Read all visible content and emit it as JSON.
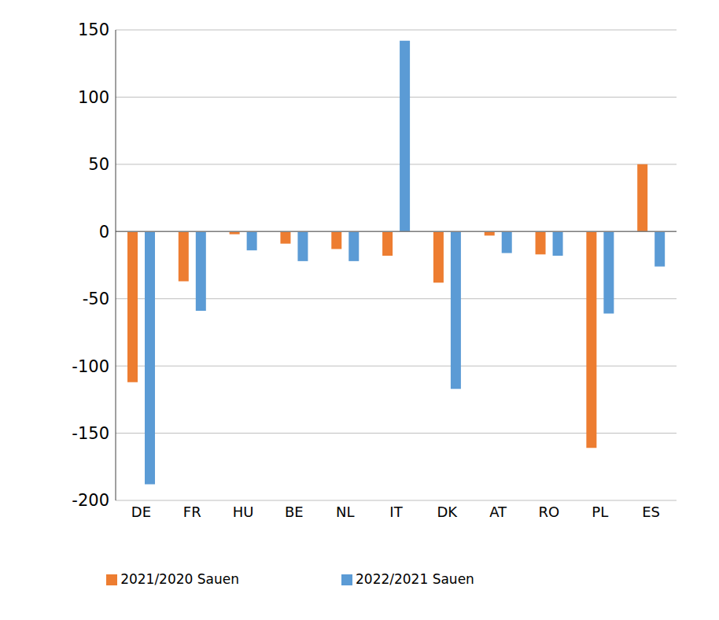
{
  "chart_data": {
    "type": "bar",
    "categories": [
      "DE",
      "FR",
      "HU",
      "BE",
      "NL",
      "IT",
      "DK",
      "AT",
      "RO",
      "PL",
      "ES"
    ],
    "series": [
      {
        "name": "2021/2020 Sauen",
        "color": "#ed7d31",
        "values": [
          -112,
          -37,
          -2,
          -9,
          -13,
          -18,
          -38,
          -3,
          -17,
          -161,
          50
        ]
      },
      {
        "name": "2022/2021 Sauen",
        "color": "#5b9bd5",
        "values": [
          -188,
          -59,
          -14,
          -22,
          -22,
          142,
          -117,
          -16,
          -18,
          -61,
          -26
        ]
      }
    ],
    "ylim": [
      -200,
      150
    ],
    "yticks": [
      -200,
      -150,
      -100,
      -50,
      0,
      50,
      100,
      150
    ],
    "grid": true,
    "legend": "bottom"
  }
}
